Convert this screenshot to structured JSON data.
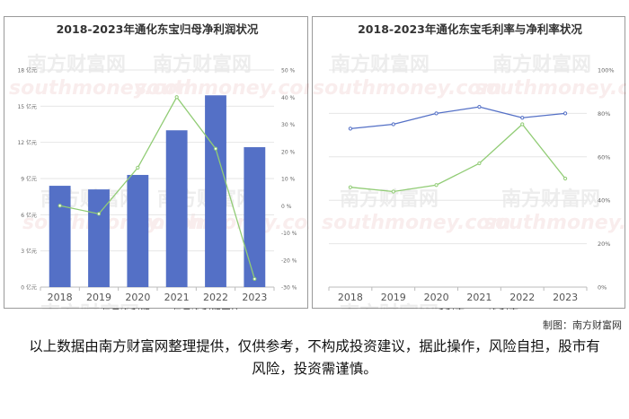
{
  "chart_data": [
    {
      "type": "bar",
      "title": "2018-2023年通化东宝归母净利润状况",
      "categories": [
        "2018",
        "2019",
        "2020",
        "2021",
        "2022",
        "2023"
      ],
      "series": [
        {
          "name": "归母净利润",
          "type": "bar",
          "axis": "left",
          "values": [
            8.4,
            8.1,
            9.3,
            13.0,
            15.9,
            11.6
          ]
        },
        {
          "name": "归母净利润同比",
          "type": "line",
          "axis": "right",
          "values": [
            0,
            -3,
            14,
            40,
            21,
            -27
          ]
        }
      ],
      "y_left": {
        "ylim": [
          0,
          18
        ],
        "ticks": [
          0,
          3,
          6,
          9,
          12,
          15,
          18
        ],
        "tick_labels": [
          "0 亿元",
          "3 亿元",
          "6 亿元",
          "9 亿元",
          "12 亿元",
          "15 亿元",
          "18 亿元"
        ]
      },
      "y_right": {
        "ylim": [
          -30,
          50
        ],
        "ticks": [
          -30,
          -20,
          -10,
          0,
          10,
          20,
          30,
          40,
          50
        ],
        "tick_labels": [
          "-30 %",
          "-20 %",
          "-10 %",
          "0 %",
          "10 %",
          "20 %",
          "30 %",
          "40 %",
          "50 %"
        ]
      },
      "legend_position": "bottom",
      "colors": {
        "bar": "#5470c6",
        "line": "#91cc75"
      },
      "grid": true
    },
    {
      "type": "line",
      "title": "2018-2023年通化东宝毛利率与净利率状况",
      "categories": [
        "2018",
        "2019",
        "2020",
        "2021",
        "2022",
        "2023"
      ],
      "series": [
        {
          "name": "毛利率",
          "values": [
            73,
            75,
            80,
            83,
            78,
            80
          ]
        },
        {
          "name": "净利率",
          "values": [
            46,
            44,
            47,
            57,
            75,
            50
          ]
        }
      ],
      "y_right": {
        "ylim": [
          0,
          100
        ],
        "ticks": [
          0,
          20,
          40,
          60,
          80,
          100
        ],
        "tick_labels": [
          "0%",
          "20%",
          "40%",
          "60%",
          "80%",
          "100%"
        ]
      },
      "legend_position": "bottom",
      "colors": {
        "毛利率": "#5470c6",
        "净利率": "#91cc75"
      },
      "grid": true
    }
  ],
  "watermark": {
    "cn": "南方财富网",
    "en": "southmoney.com"
  },
  "credit": "制图：南方财富网",
  "disclaimer": "以上数据由南方财富网整理提供，仅供参考，不构成投资建议，据此操作，风险自担，股市有风险，投资需谨慎。"
}
